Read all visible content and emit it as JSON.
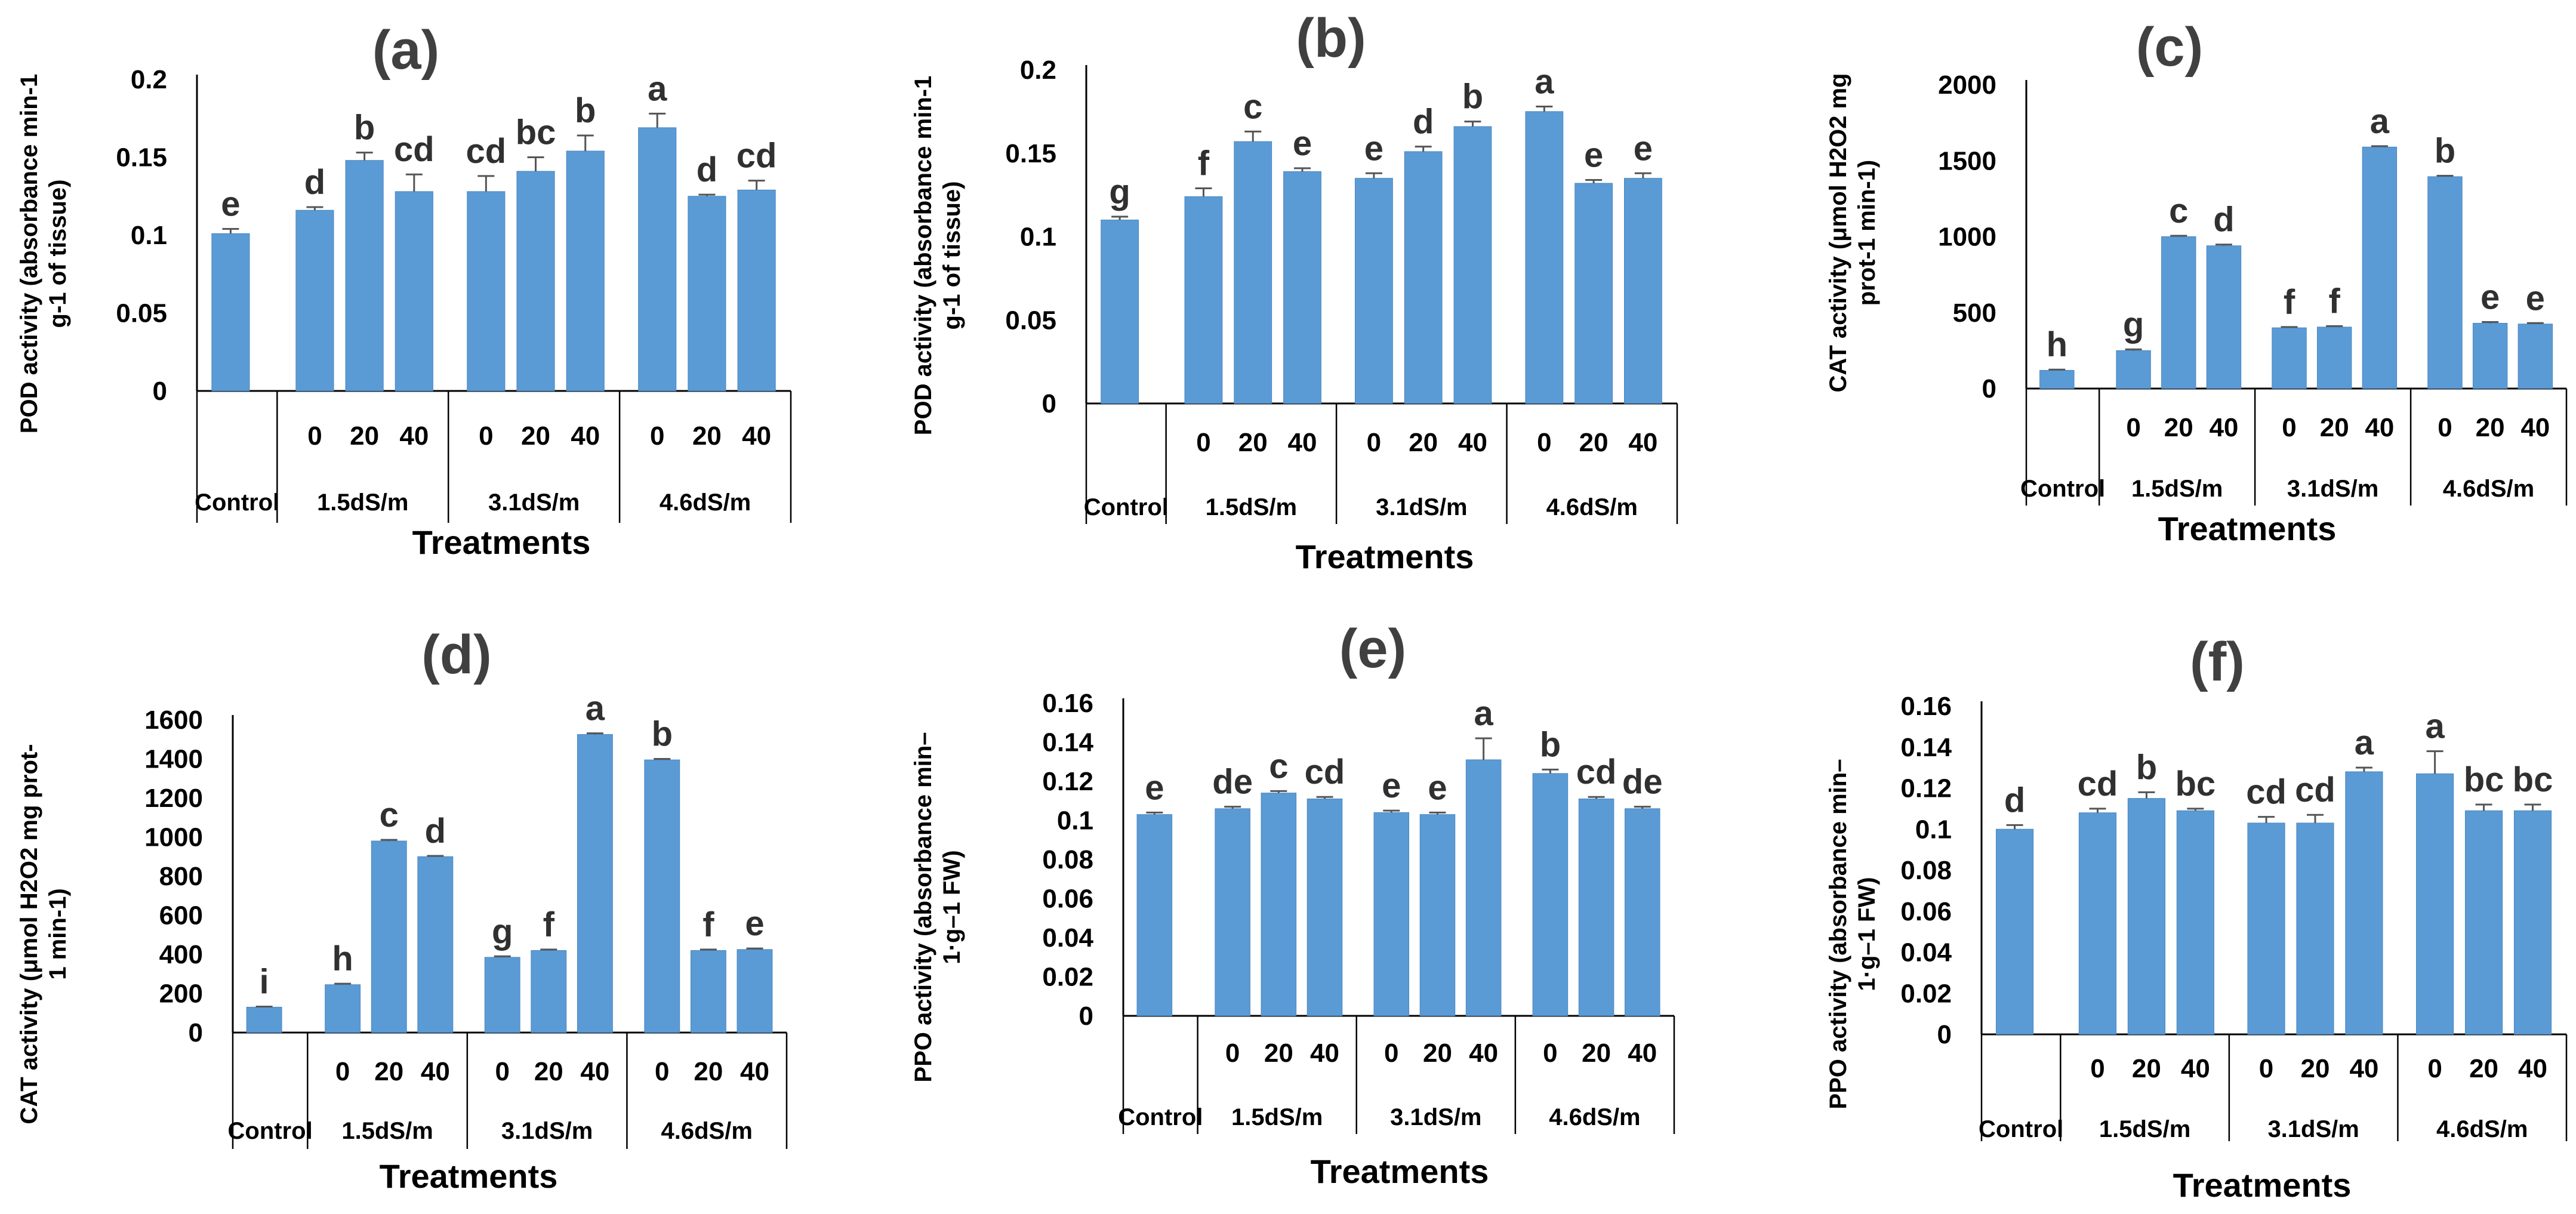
{
  "colors": {
    "bar": "#5b9bd5",
    "bar_edge": "#4a86c0",
    "text": "#000000",
    "letter": "#404040"
  },
  "chart_data": [
    {
      "id": "a",
      "type": "bar",
      "title": "(a)",
      "ylabel_lines": [
        "POD activity (absorbance min-1",
        "g-1 of tissue)"
      ],
      "xlabel": "Treatments",
      "ylim": [
        0,
        0.2
      ],
      "yticks": [
        "0.2",
        "0.15",
        "0.1",
        "0.05",
        "0"
      ],
      "sub_labels": [
        "0",
        "20",
        "40"
      ],
      "groups": [
        "Control",
        "1.5dS/m",
        "3.1dS/m",
        "4.6dS/m"
      ],
      "values": [
        0.101,
        0.116,
        0.148,
        0.128,
        0.128,
        0.141,
        0.154,
        0.169,
        0.125,
        0.129
      ],
      "errors": [
        0.003,
        0.002,
        0.005,
        0.011,
        0.01,
        0.009,
        0.01,
        0.009,
        0.001,
        0.006
      ],
      "letters": [
        "e",
        "d",
        "b",
        "cd",
        "cd",
        "bc",
        "b",
        "a",
        "d",
        "cd"
      ]
    },
    {
      "id": "b",
      "type": "bar",
      "title": "(b)",
      "ylabel_lines": [
        "POD activity (absorbance min-1",
        "g-1 of tissue)"
      ],
      "xlabel": "Treatments",
      "ylim": [
        0,
        0.2
      ],
      "yticks": [
        "0.2",
        "0.15",
        "0.1",
        "0.05",
        "0"
      ],
      "sub_labels": [
        "0",
        "20",
        "40"
      ],
      "groups": [
        "Control",
        "1.5dS/m",
        "3.1dS/m",
        "4.6dS/m"
      ],
      "values": [
        0.11,
        0.124,
        0.157,
        0.139,
        0.135,
        0.151,
        0.166,
        0.175,
        0.132,
        0.135
      ],
      "errors": [
        0.002,
        0.005,
        0.006,
        0.002,
        0.003,
        0.003,
        0.003,
        0.003,
        0.002,
        0.003
      ],
      "letters": [
        "g",
        "f",
        "c",
        "e",
        "e",
        "d",
        "b",
        "a",
        "e",
        "e"
      ]
    },
    {
      "id": "c",
      "type": "bar",
      "title": "(c)",
      "ylabel_lines": [
        "CAT activity (μmol H2O2 mg",
        "prot-1 min-1)"
      ],
      "xlabel": "Treatments",
      "ylim": [
        0,
        2000
      ],
      "yticks": [
        "2000",
        "1500",
        "1000",
        "500",
        "0"
      ],
      "sub_labels": [
        "0",
        "20",
        "40"
      ],
      "groups": [
        "Control",
        "1.5dS/m",
        "3.1dS/m",
        "4.6dS/m"
      ],
      "values": [
        120,
        250,
        1000,
        940,
        400,
        405,
        1590,
        1395,
        430,
        425
      ],
      "errors": [
        5,
        8,
        6,
        8,
        5,
        6,
        6,
        6,
        8,
        6
      ],
      "letters": [
        "h",
        "g",
        "c",
        "d",
        "f",
        "f",
        "a",
        "b",
        "e",
        "e"
      ]
    },
    {
      "id": "d",
      "type": "bar",
      "title": "(d)",
      "ylabel_lines": [
        "CAT activity (μmol H2O2 mg prot-",
        "1 min-1)"
      ],
      "xlabel": "Treatments",
      "ylim": [
        0,
        1600
      ],
      "yticks": [
        "1600",
        "1400",
        "1200",
        "1000",
        "800",
        "600",
        "400",
        "200",
        "0"
      ],
      "sub_labels": [
        "0",
        "20",
        "40"
      ],
      "groups": [
        "Control",
        "1.5dS/m",
        "3.1dS/m",
        "4.6dS/m"
      ],
      "values": [
        130,
        245,
        980,
        900,
        385,
        420,
        1525,
        1395,
        420,
        425
      ],
      "errors": [
        3,
        5,
        6,
        4,
        5,
        5,
        6,
        5,
        5,
        5
      ],
      "letters": [
        "i",
        "h",
        "c",
        "d",
        "g",
        "f",
        "a",
        "b",
        "f",
        "e"
      ]
    },
    {
      "id": "e",
      "type": "bar",
      "title": "(e)",
      "ylabel_lines": [
        "PPO activity (absorbance min–",
        "1·g–1 FW)"
      ],
      "xlabel": "Treatments",
      "ylim": [
        0,
        0.16
      ],
      "yticks": [
        "0.16",
        "0.14",
        "0.12",
        "0.1",
        "0.08",
        "0.06",
        "0.04",
        "0.02",
        "0"
      ],
      "sub_labels": [
        "0",
        "20",
        "40"
      ],
      "groups": [
        "Control",
        "1.5dS/m",
        "3.1dS/m",
        "4.6dS/m"
      ],
      "values": [
        0.103,
        0.106,
        0.114,
        0.111,
        0.104,
        0.103,
        0.131,
        0.124,
        0.111,
        0.106
      ],
      "errors": [
        0.001,
        0.001,
        0.001,
        0.001,
        0.001,
        0.001,
        0.011,
        0.002,
        0.001,
        0.001
      ],
      "letters": [
        "e",
        "de",
        "c",
        "cd",
        "e",
        "e",
        "a",
        "b",
        "cd",
        "de"
      ]
    },
    {
      "id": "f",
      "type": "bar",
      "title": "(f)",
      "ylabel_lines": [
        "PPO activity (absorbance min–",
        "1·g–1 FW)"
      ],
      "xlabel": "Treatments",
      "ylim": [
        0,
        0.16
      ],
      "yticks": [
        "0.16",
        "0.14",
        "0.12",
        "0.1",
        "0.08",
        "0.06",
        "0.04",
        "0.02",
        "0"
      ],
      "sub_labels": [
        "0",
        "20",
        "40"
      ],
      "groups": [
        "Control",
        "1.5dS/m",
        "3.1dS/m",
        "4.6dS/m"
      ],
      "values": [
        0.1,
        0.108,
        0.115,
        0.109,
        0.103,
        0.103,
        0.128,
        0.127,
        0.109,
        0.109
      ],
      "errors": [
        0.002,
        0.002,
        0.003,
        0.001,
        0.003,
        0.004,
        0.002,
        0.011,
        0.003,
        0.003
      ],
      "letters": [
        "d",
        "cd",
        "b",
        "bc",
        "cd",
        "cd",
        "a",
        "a",
        "bc",
        "bc"
      ]
    }
  ]
}
